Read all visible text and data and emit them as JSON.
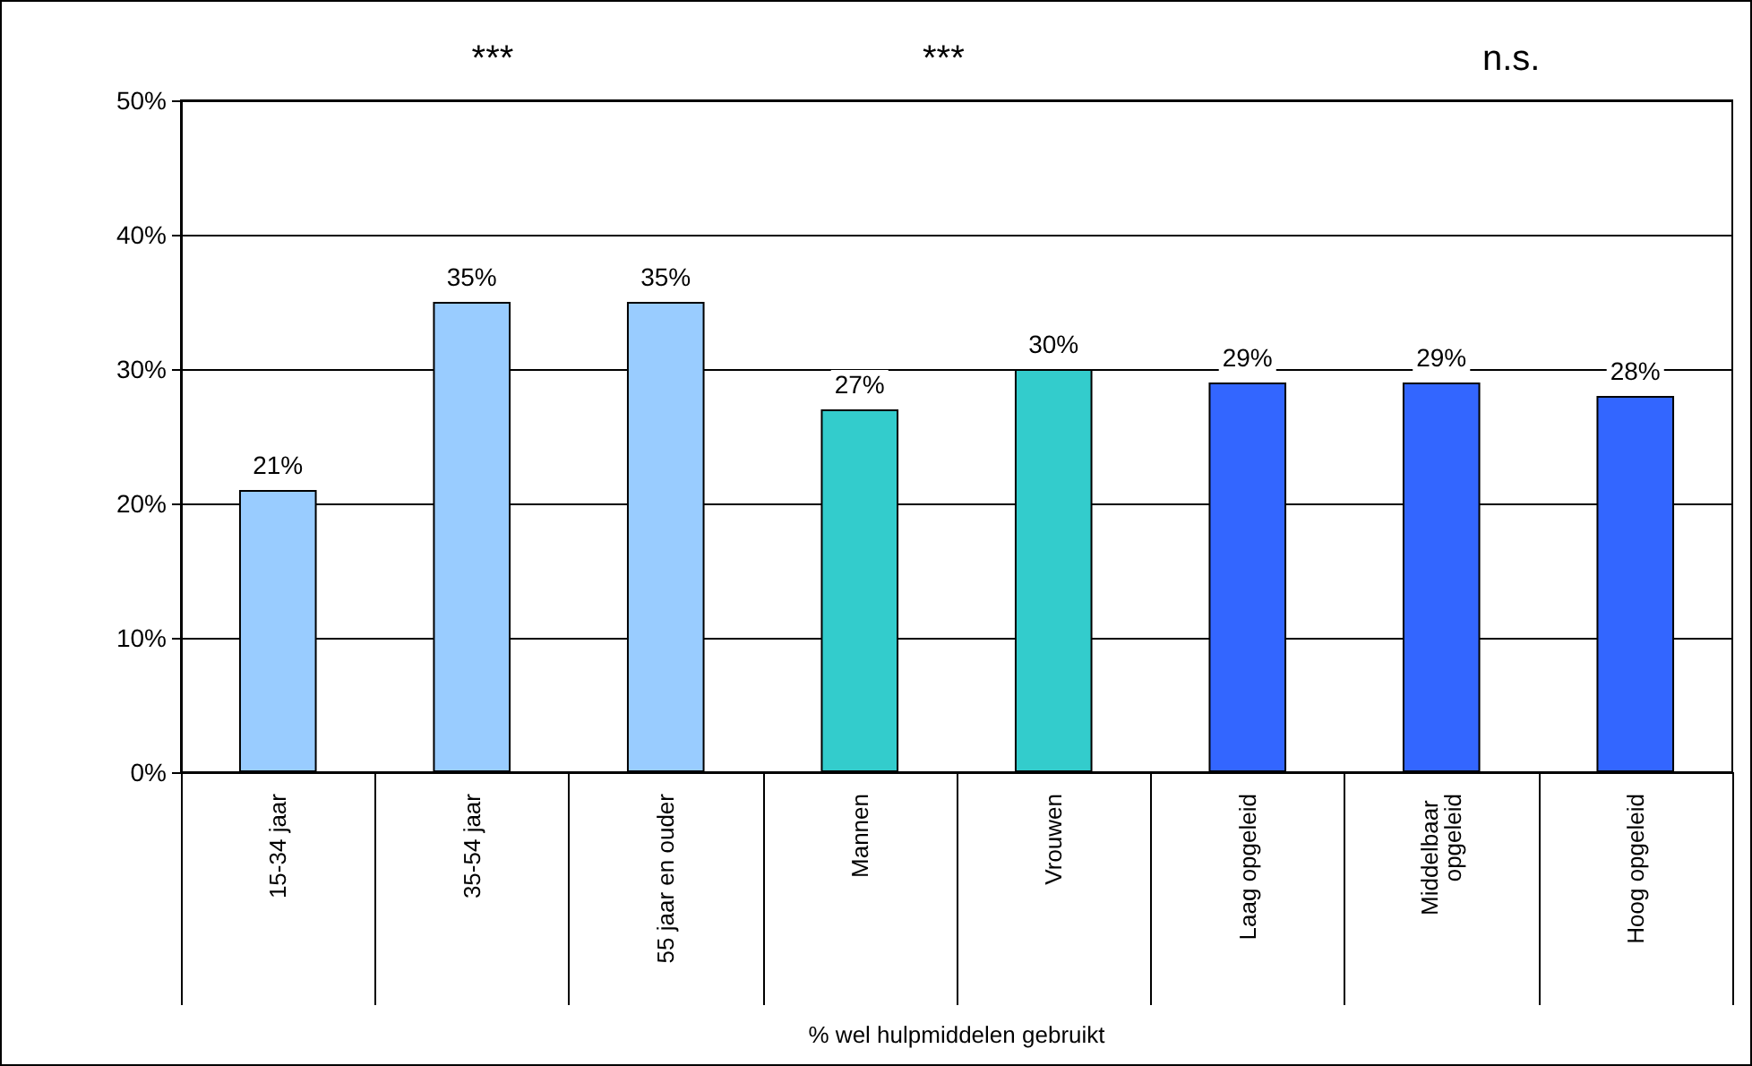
{
  "chart_data": {
    "type": "bar",
    "xlabel": "% wel hulpmiddelen gebruikt",
    "categories": [
      "15-34 jaar",
      "35-54 jaar",
      "55 jaar en ouder",
      "Mannen",
      "Vrouwen",
      "Laag opgeleid",
      "Middelbaar opgeleid",
      "Hoog opgeleid"
    ],
    "values": [
      21,
      35,
      35,
      27,
      30,
      29,
      29,
      28
    ],
    "colors": [
      "#99ccff",
      "#99ccff",
      "#99ccff",
      "#33cccc",
      "#33cccc",
      "#3366ff",
      "#3366ff",
      "#3366ff"
    ],
    "value_labels": [
      "21%",
      "35%",
      "35%",
      "27%",
      "30%",
      "29%",
      "29%",
      "28%"
    ],
    "annotations": [
      "***",
      "***",
      "n.s."
    ],
    "ylim": [
      0,
      50
    ],
    "yticks": [
      {
        "value": 0,
        "label": "0%"
      },
      {
        "value": 10,
        "label": "10%"
      },
      {
        "value": 20,
        "label": "20%"
      },
      {
        "value": 30,
        "label": "30%"
      },
      {
        "value": 40,
        "label": "40%"
      },
      {
        "value": 50,
        "label": "50%"
      }
    ],
    "grid": "y"
  }
}
